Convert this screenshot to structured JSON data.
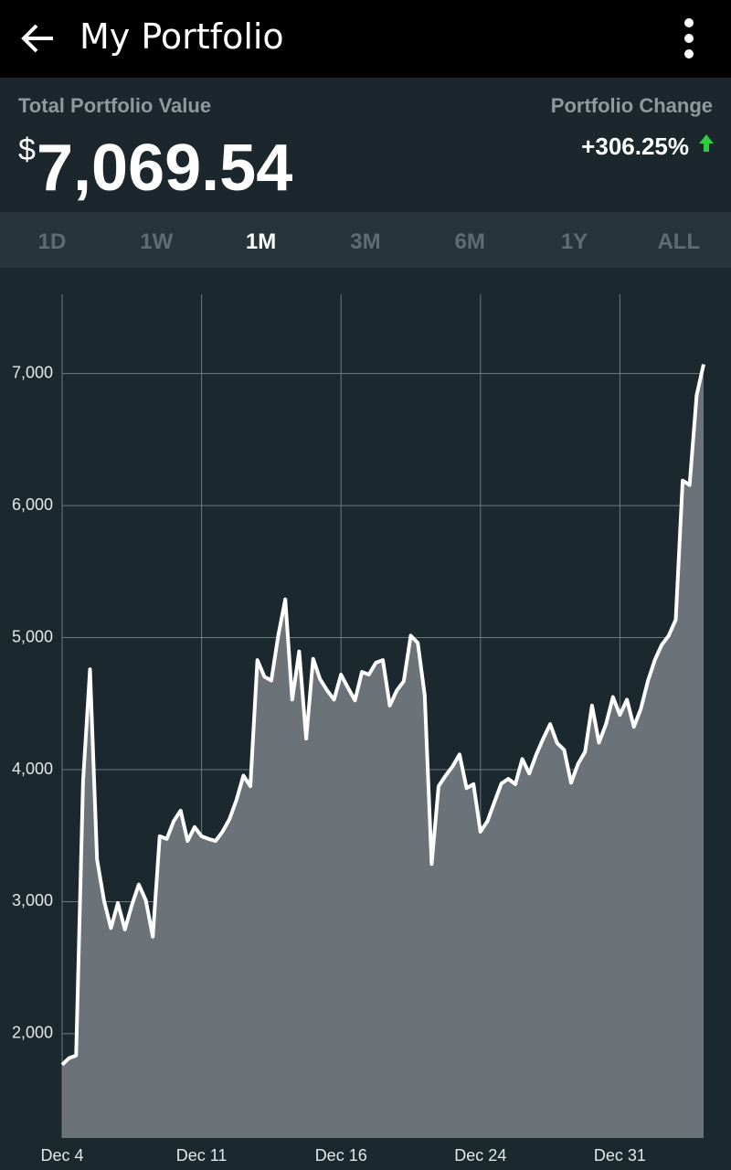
{
  "app_bar": {
    "title": "My Portfolio"
  },
  "summary": {
    "total_label": "Total Portfolio Value",
    "currency": "$",
    "total_value": "7,069.54",
    "change_label": "Portfolio Change",
    "change_value": "+306.25%"
  },
  "tabs": {
    "items": [
      "1D",
      "1W",
      "1M",
      "3M",
      "6M",
      "1Y",
      "ALL"
    ],
    "selected": "1M"
  },
  "chart_data": {
    "type": "area",
    "categories": [
      "Dec 4",
      null,
      null,
      null,
      null,
      null,
      null,
      null,
      null,
      null,
      null,
      null,
      null,
      null,
      null,
      null,
      null,
      null,
      null,
      null,
      "Dec 11",
      null,
      null,
      null,
      null,
      null,
      null,
      null,
      null,
      null,
      null,
      null,
      null,
      null,
      null,
      null,
      null,
      null,
      null,
      null,
      "Dec 16",
      null,
      null,
      null,
      null,
      null,
      null,
      null,
      null,
      null,
      null,
      null,
      null,
      null,
      null,
      null,
      null,
      null,
      null,
      null,
      "Dec 24",
      null,
      null,
      null,
      null,
      null,
      null,
      null,
      null,
      null,
      null,
      null,
      null,
      null,
      null,
      null,
      null,
      null,
      null,
      null,
      "Dec 31",
      null,
      null,
      null,
      null,
      null,
      null,
      null,
      null,
      null,
      null,
      null,
      null
    ],
    "values": [
      1765,
      1815,
      1835,
      3910,
      4760,
      3320,
      3010,
      2800,
      2990,
      2790,
      2975,
      3130,
      3010,
      2735,
      3495,
      3475,
      3610,
      3690,
      3460,
      3565,
      3495,
      3475,
      3460,
      3530,
      3625,
      3770,
      3955,
      3875,
      4830,
      4705,
      4675,
      5015,
      5290,
      4530,
      4895,
      4235,
      4840,
      4685,
      4600,
      4530,
      4720,
      4620,
      4525,
      4740,
      4720,
      4810,
      4830,
      4485,
      4600,
      4670,
      5015,
      4960,
      4565,
      3285,
      3875,
      3955,
      4025,
      4115,
      3860,
      3890,
      3530,
      3610,
      3755,
      3895,
      3930,
      3890,
      4080,
      3970,
      4115,
      4235,
      4345,
      4200,
      4150,
      3900,
      4045,
      4135,
      4485,
      4205,
      4345,
      4550,
      4415,
      4530,
      4325,
      4460,
      4670,
      4830,
      4945,
      5015,
      5135,
      6190,
      6155,
      6835,
      7070
    ],
    "color": "#ffffff",
    "fill": "#6b7378",
    "ylim": [
      1210,
      7600
    ],
    "yticks": [
      {
        "value": 2000,
        "label": "2,000"
      },
      {
        "value": 3000,
        "label": "3,000"
      },
      {
        "value": 4000,
        "label": "4,000"
      },
      {
        "value": 5000,
        "label": "5,000"
      },
      {
        "value": 6000,
        "label": "6,000"
      },
      {
        "value": 7000,
        "label": "7,000"
      }
    ],
    "grid": true
  }
}
